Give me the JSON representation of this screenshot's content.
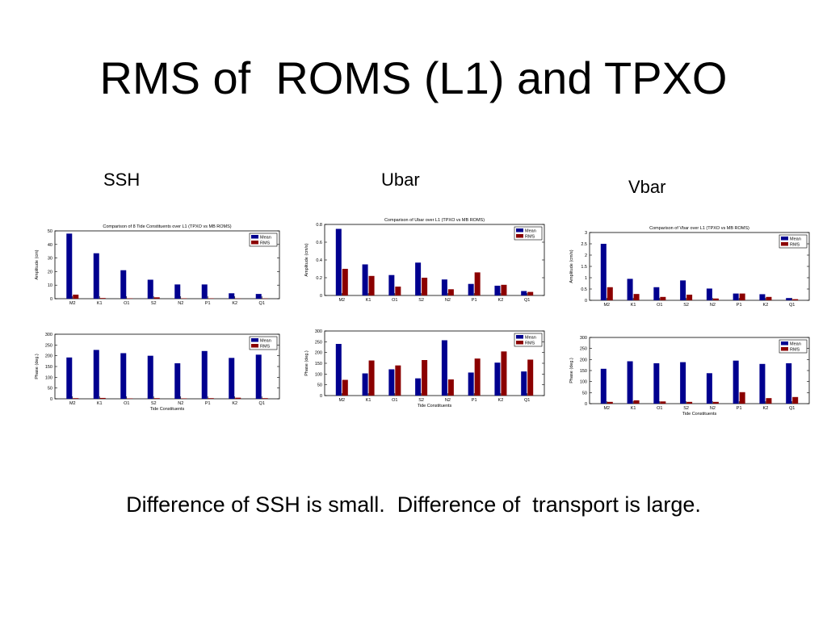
{
  "slide": {
    "title": "RMS of  ROMS (L1) and TPXO",
    "caption": "Difference of SSH is small.  Difference of  transport is large."
  },
  "columns": {
    "ssh": "SSH",
    "ubar": "Ubar",
    "vbar": "Vbar"
  },
  "colors": {
    "mean": "#00008f",
    "rms": "#8b0000"
  },
  "chart_data": [
    {
      "id": "ssh-amp",
      "type": "bar",
      "title": "Comparison of 8 Tide Constituents over L1 (TPXO vs MB ROMS)",
      "xlabel": "",
      "ylabel": "Amplitude (cm)",
      "categories": [
        "M2",
        "K1",
        "O1",
        "S2",
        "N2",
        "P1",
        "K2",
        "Q1"
      ],
      "ylim": [
        0,
        50
      ],
      "yticks": [
        "0",
        "10",
        "20",
        "30",
        "40",
        "50"
      ],
      "series": [
        {
          "name": "Mean",
          "values": [
            48,
            33.5,
            21,
            14,
            10.5,
            10.5,
            4,
            3.5
          ]
        },
        {
          "name": "RMS",
          "values": [
            3,
            0.5,
            0.3,
            1,
            0.3,
            0.3,
            0.2,
            0.2
          ]
        }
      ],
      "legend": "top-right"
    },
    {
      "id": "ssh-phase",
      "type": "bar",
      "title": "",
      "xlabel": "Tide Constituents",
      "ylabel": "Phase (deg.)",
      "categories": [
        "M2",
        "K1",
        "O1",
        "S2",
        "N2",
        "P1",
        "K2",
        "Q1"
      ],
      "ylim": [
        0,
        300
      ],
      "yticks": [
        "0",
        "50",
        "100",
        "150",
        "200",
        "250",
        "300"
      ],
      "series": [
        {
          "name": "Mean",
          "values": [
            192,
            227,
            212,
            200,
            165,
            222,
            190,
            205
          ]
        },
        {
          "name": "RMS",
          "values": [
            3,
            4,
            2,
            3,
            2,
            3,
            5,
            3
          ]
        }
      ],
      "legend": "top-right"
    },
    {
      "id": "ubar-amp",
      "type": "bar",
      "title": "Comparison of Ubar over L1 (TPXO vs MB ROMS)",
      "xlabel": "",
      "ylabel": "Amplitude (cm/s)",
      "categories": [
        "M2",
        "K1",
        "O1",
        "S2",
        "N2",
        "P1",
        "K2",
        "Q1"
      ],
      "ylim": [
        0,
        0.8
      ],
      "yticks": [
        "0",
        "0.2",
        "0.4",
        "0.6",
        "0.8"
      ],
      "series": [
        {
          "name": "Mean",
          "values": [
            0.75,
            0.35,
            0.23,
            0.37,
            0.18,
            0.13,
            0.11,
            0.05
          ]
        },
        {
          "name": "RMS",
          "values": [
            0.3,
            0.22,
            0.1,
            0.2,
            0.07,
            0.26,
            0.12,
            0.04
          ]
        }
      ],
      "legend": "top-right"
    },
    {
      "id": "ubar-phase",
      "type": "bar",
      "title": "",
      "xlabel": "Tide Constituents",
      "ylabel": "Phase (deg.)",
      "categories": [
        "M2",
        "K1",
        "O1",
        "S2",
        "N2",
        "P1",
        "K2",
        "Q1"
      ],
      "ylim": [
        0,
        300
      ],
      "yticks": [
        "0",
        "50",
        "100",
        "150",
        "200",
        "250",
        "300"
      ],
      "series": [
        {
          "name": "Mean",
          "values": [
            240,
            103,
            122,
            80,
            257,
            107,
            153,
            112
          ]
        },
        {
          "name": "RMS",
          "values": [
            73,
            163,
            140,
            165,
            75,
            172,
            205,
            167
          ]
        }
      ],
      "legend": "top-right"
    },
    {
      "id": "vbar-amp",
      "type": "bar",
      "title": "Comparison of Vbar over L1 (TPXO vs MB ROMS)",
      "xlabel": "",
      "ylabel": "Amplitude (cm/s)",
      "categories": [
        "M2",
        "K1",
        "O1",
        "S2",
        "N2",
        "P1",
        "K2",
        "Q1"
      ],
      "ylim": [
        0,
        3
      ],
      "yticks": [
        "0",
        "0.5",
        "1",
        "1.5",
        "2",
        "2.5",
        "3"
      ],
      "series": [
        {
          "name": "Mean",
          "values": [
            2.5,
            0.95,
            0.58,
            0.88,
            0.52,
            0.3,
            0.27,
            0.1
          ]
        },
        {
          "name": "RMS",
          "values": [
            0.58,
            0.28,
            0.15,
            0.25,
            0.08,
            0.3,
            0.15,
            0.05
          ]
        }
      ],
      "legend": "top-right"
    },
    {
      "id": "vbar-phase",
      "type": "bar",
      "title": "",
      "xlabel": "Tide Constituents",
      "ylabel": "Phase (deg.)",
      "categories": [
        "M2",
        "K1",
        "O1",
        "S2",
        "N2",
        "P1",
        "K2",
        "Q1"
      ],
      "ylim": [
        0,
        300
      ],
      "yticks": [
        "0",
        "50",
        "100",
        "150",
        "200",
        "250",
        "300"
      ],
      "series": [
        {
          "name": "Mean",
          "values": [
            158,
            192,
            183,
            188,
            138,
            195,
            180,
            183
          ]
        },
        {
          "name": "RMS",
          "values": [
            8,
            15,
            10,
            8,
            8,
            52,
            25,
            30
          ]
        }
      ],
      "legend": "top-right"
    }
  ]
}
